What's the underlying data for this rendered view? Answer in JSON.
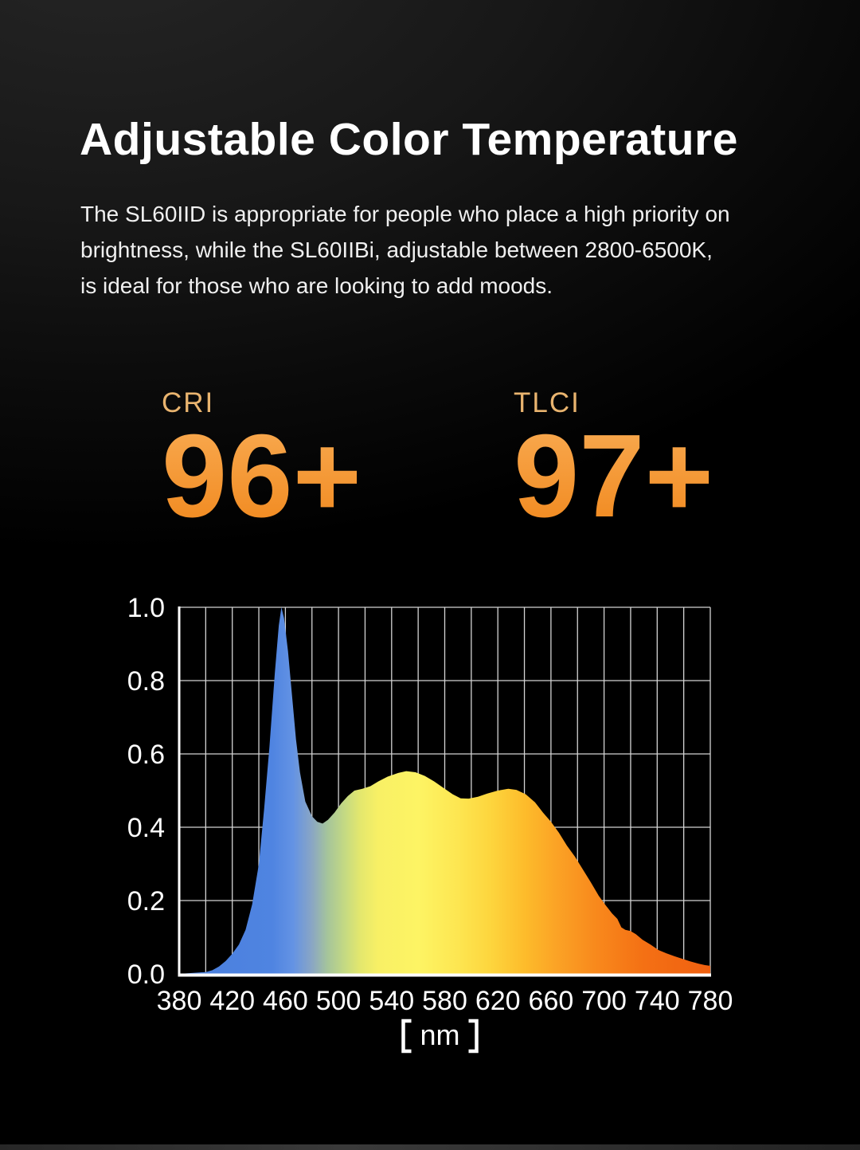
{
  "page": {
    "title": "Adjustable Color Temperature",
    "paragraph_lines": [
      "The SL60IID is appropriate for people who place a high priority on",
      "brightness, while the SL60IIBi, adjustable between 2800-6500K,",
      "is ideal for those who are looking to add moods."
    ]
  },
  "stats": [
    {
      "label": "CRI",
      "value": "96+"
    },
    {
      "label": "TLCI",
      "value": "97+"
    }
  ],
  "colors": {
    "background": "#000000",
    "title_text": "#ffffff",
    "body_text": "#f0f0f0",
    "stat_label": "#e9b46f",
    "stat_value_top": "#f8a84e",
    "stat_value_bottom": "#f18a20",
    "grid_line": "#d4d4d4",
    "axis_line": "#ffffff",
    "tick_text": "#ffffff"
  },
  "chart_data": {
    "type": "area",
    "title": "",
    "xlabel": "【nm】",
    "ylabel": "",
    "xlim": [
      380,
      780
    ],
    "ylim": [
      0,
      1
    ],
    "xticks": [
      380,
      420,
      460,
      500,
      540,
      580,
      620,
      660,
      700,
      740,
      780
    ],
    "yticks": [
      0.0,
      0.2,
      0.4,
      0.6,
      0.8,
      1.0
    ],
    "x_grid_step": 20,
    "y_grid_step": 0.2,
    "grid": true,
    "legend": "none",
    "points": [
      [
        380,
        0
      ],
      [
        400,
        0.005
      ],
      [
        405,
        0.01
      ],
      [
        410,
        0.02
      ],
      [
        415,
        0.035
      ],
      [
        420,
        0.055
      ],
      [
        425,
        0.08
      ],
      [
        430,
        0.12
      ],
      [
        435,
        0.19
      ],
      [
        440,
        0.3
      ],
      [
        444,
        0.45
      ],
      [
        448,
        0.62
      ],
      [
        452,
        0.82
      ],
      [
        455,
        0.95
      ],
      [
        457,
        1.0
      ],
      [
        459,
        0.97
      ],
      [
        462,
        0.88
      ],
      [
        465,
        0.76
      ],
      [
        468,
        0.64
      ],
      [
        471,
        0.55
      ],
      [
        475,
        0.47
      ],
      [
        480,
        0.43
      ],
      [
        484,
        0.415
      ],
      [
        488,
        0.41
      ],
      [
        492,
        0.42
      ],
      [
        497,
        0.44
      ],
      [
        502,
        0.465
      ],
      [
        507,
        0.485
      ],
      [
        512,
        0.5
      ],
      [
        518,
        0.505
      ],
      [
        524,
        0.512
      ],
      [
        530,
        0.525
      ],
      [
        537,
        0.538
      ],
      [
        545,
        0.548
      ],
      [
        551,
        0.553
      ],
      [
        558,
        0.55
      ],
      [
        565,
        0.54
      ],
      [
        572,
        0.525
      ],
      [
        580,
        0.505
      ],
      [
        586,
        0.49
      ],
      [
        592,
        0.479
      ],
      [
        598,
        0.478
      ],
      [
        605,
        0.483
      ],
      [
        612,
        0.492
      ],
      [
        620,
        0.5
      ],
      [
        628,
        0.505
      ],
      [
        634,
        0.502
      ],
      [
        641,
        0.49
      ],
      [
        648,
        0.468
      ],
      [
        654,
        0.44
      ],
      [
        660,
        0.415
      ],
      [
        666,
        0.385
      ],
      [
        672,
        0.35
      ],
      [
        678,
        0.32
      ],
      [
        684,
        0.285
      ],
      [
        690,
        0.25
      ],
      [
        696,
        0.213
      ],
      [
        701,
        0.188
      ],
      [
        706,
        0.165
      ],
      [
        710,
        0.15
      ],
      [
        713,
        0.127
      ],
      [
        716,
        0.12
      ],
      [
        720,
        0.117
      ],
      [
        724,
        0.108
      ],
      [
        729,
        0.093
      ],
      [
        735,
        0.08
      ],
      [
        741,
        0.065
      ],
      [
        747,
        0.056
      ],
      [
        753,
        0.048
      ],
      [
        759,
        0.041
      ],
      [
        765,
        0.034
      ],
      [
        771,
        0.028
      ],
      [
        776,
        0.024
      ],
      [
        780,
        0.022
      ]
    ],
    "gradient_stops": [
      {
        "nm": 380,
        "color": "#4a7fdd"
      },
      {
        "nm": 450,
        "color": "#4f84e1"
      },
      {
        "nm": 466,
        "color": "#6493e4"
      },
      {
        "nm": 480,
        "color": "#8aa6c4"
      },
      {
        "nm": 492,
        "color": "#a6c59a"
      },
      {
        "nm": 505,
        "color": "#c5da82"
      },
      {
        "nm": 516,
        "color": "#e3e76e"
      },
      {
        "nm": 530,
        "color": "#f8f065"
      },
      {
        "nm": 560,
        "color": "#fdf464"
      },
      {
        "nm": 590,
        "color": "#fde651"
      },
      {
        "nm": 615,
        "color": "#fdd53d"
      },
      {
        "nm": 640,
        "color": "#fdbc2b"
      },
      {
        "nm": 665,
        "color": "#fba225"
      },
      {
        "nm": 695,
        "color": "#f8881c"
      },
      {
        "nm": 730,
        "color": "#f47014"
      },
      {
        "nm": 780,
        "color": "#f06010"
      }
    ]
  }
}
